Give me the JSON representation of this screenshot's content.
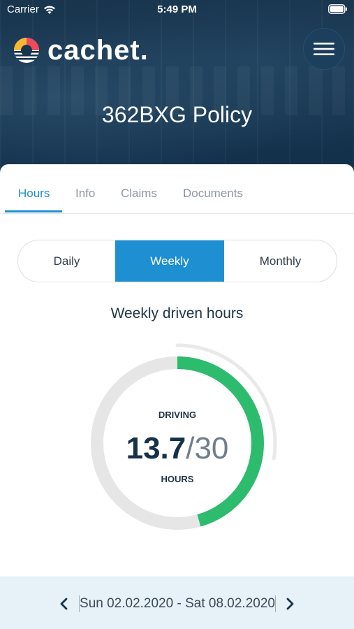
{
  "status_bar": {
    "carrier": "Carrier",
    "time": "5:49 PM"
  },
  "header": {
    "logo_text": "cachet.",
    "menu_icon": "hamburger-menu-icon",
    "policy_title": "362BXG Policy"
  },
  "tabs": [
    {
      "label": "Hours",
      "active": true
    },
    {
      "label": "Info",
      "active": false
    },
    {
      "label": "Claims",
      "active": false
    },
    {
      "label": "Documents",
      "active": false
    }
  ],
  "period_selector": {
    "options": [
      "Daily",
      "Weekly",
      "Monthly"
    ],
    "selected": "Weekly"
  },
  "section_title": "Weekly driven hours",
  "gauge": {
    "label_top": "DRIVING",
    "value": "13.7",
    "total": "/30",
    "label_bottom": "HOURS",
    "value_number": 13.7,
    "total_number": 30
  },
  "date_nav": {
    "range": "Sun 02.02.2020 - Sat 08.02.2020",
    "prev_icon": "chevron-left-icon",
    "next_icon": "chevron-right-icon"
  },
  "colors": {
    "accent": "#1e8fd1",
    "progress": "#2dbb6e",
    "header_bg": "#183550"
  }
}
